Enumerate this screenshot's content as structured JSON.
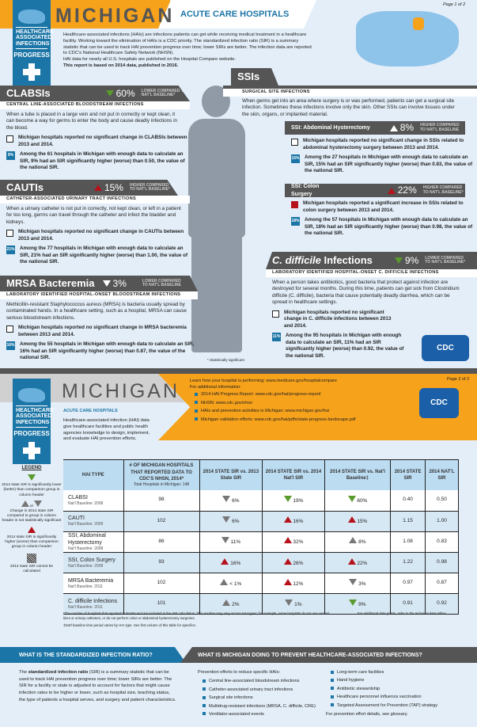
{
  "colors": {
    "orange": "#f7a21b",
    "blue": "#1b75a6",
    "dark": "#555555",
    "red": "#b5121b",
    "green": "#5a9a2e",
    "background": "#e3eef8"
  },
  "badge": {
    "lines": [
      "HEALTHCARE",
      "ASSOCIATED",
      "INFECTIONS"
    ],
    "progress": "PROGRESS"
  },
  "page1": {
    "page_label": "Page 1 of 2",
    "state": "MICHIGAN",
    "subtitle": "ACUTE CARE HOSPITALS",
    "intro": "Healthcare-associated infections (HAIs) are infections patients can get while receiving medical treatment in a healthcare facility. Working toward the elimination of HAIs is a CDC priority. The standardized infection ratio (SIR) is a summary statistic that can be used to track HAI prevention progress over time; lower SIRs are better. The infection data are reported to CDC's National Healthcare Safety Network (NHSN).",
    "intro2": "HAI data for nearly all U.S. hospitals are published on the Hospital Compare website.",
    "intro3": "This report is based on 2014 data, published in 2016.",
    "footnote": "* Statistically significant",
    "clabsi": {
      "name": "CLABSIs",
      "pct": "60%",
      "direction": "down",
      "cmp": "LOWER COMPARED TO NAT'L BASELINE*",
      "sub": "CENTRAL LINE-ASSOCIATED BLOODSTREAM INFECTIONS",
      "desc": "When a tube is placed in a large vein and not put in correctly or kept clean, it can become a way for germs to enter the body and cause deadly infections in the blood.",
      "change": "Michigan hospitals reported no significant change in CLABSIs between 2013 and 2014.",
      "badge": "9%",
      "among": "Among the 61 hospitals in Michigan with enough data to calculate an SIR, 9% had an SIR significantly higher (worse) than 0.50, the value of the national SIR."
    },
    "cauti": {
      "name": "CAUTIs",
      "pct": "15%",
      "direction": "up",
      "cmp": "HIGHER COMPARED TO NAT'L BASELINE*",
      "sub": "CATHETER-ASSOCIATED URINARY TRACT INFECTIONS",
      "desc": "When a urinary catheter is not put in correctly, not kept clean, or left in a patient for too long, germs can travel through the catheter and infect the bladder and kidneys.",
      "change": "Michigan hospitals reported no significant change in CAUTIs between 2013 and 2014.",
      "badge": "21%",
      "among": "Among the 77 hospitals in Michigan with enough data to calculate an SIR, 21% had an SIR significantly higher (worse) than 1.00, the value of the national SIR."
    },
    "mrsa": {
      "name": "MRSA Bacteremia",
      "pct": "3%",
      "direction": "down",
      "cmp": "LOWER COMPARED TO NAT'L BASELINE",
      "sub": "LABORATORY IDENTIFIED HOSPITAL-ONSET BLOODSTREAM INFECTIONS",
      "desc": "Methicillin-resistant Staphylococcus aureus (MRSA) is bacteria usually spread by contaminated hands. In a healthcare setting, such as a hospital, MRSA can cause serious bloodstream infections.",
      "change": "Michigan hospitals reported no significant change in MRSA bacteremia between 2013 and 2014.",
      "badge": "16%",
      "among": "Among the 55 hospitals in Michigan with enough data to calculate an SIR, 16% had an SIR significantly higher (worse) than 0.87, the value of the national SIR."
    },
    "ssi": {
      "name": "SSIs",
      "sub": "SURGICAL SITE INFECTIONS",
      "desc": "When germs get into an area where surgery is or was performed, patients can get a surgical site infection. Sometimes these infections involve only the skin. Other SSIs can involve tissues under the skin, organs, or implanted material."
    },
    "ssi_abd": {
      "name": "SSI: Abdominal Hysterectomy",
      "pct": "8%",
      "direction": "up",
      "cmp": "HIGHER COMPARED TO NAT'L BASELINE",
      "change": "Michigan hospitals reported no significant change in SSIs related to abdominal hysterectomy surgery between 2013 and 2014.",
      "badge": "15%",
      "among": "Among the 27 hospitals in Michigan with enough data to calculate an SIR, 15% had an SIR significantly higher (worse) than 0.83, the value of the national SIR."
    },
    "ssi_colon": {
      "name": "SSI: Colon Surgery",
      "pct": "22%",
      "direction": "up",
      "cmp": "HIGHER COMPARED TO NAT'L BASELINE*",
      "change": "Michigan hospitals reported a significant increase in SSIs related to colon surgery between 2013 and 2014.",
      "badge": "18%",
      "among": "Among the 57 hospitals in Michigan with enough data to calculate an SIR, 18% had an SIR significantly higher (worse) than 0.98, the value of the national SIR."
    },
    "cdiff": {
      "name_italic": "C. difficile",
      "name_rest": " Infections",
      "pct": "9%",
      "direction": "down",
      "cmp": "LOWER COMPARED TO NAT'L BASELINE*",
      "sub": "LABORATORY IDENTIFIED HOSPITAL-ONSET C. DIFFICILE INFECTIONS",
      "desc": "When a person takes antibiotics, good bacteria that protect against infection are destroyed for several months. During this time, patients can get sick from Clostridium difficile (C. difficile), bacteria that cause potentially deadly diarrhea, which can be spread in healthcare settings.",
      "change": "Michigan hospitals reported no significant change in C. difficile infections between 2013 and 2014.",
      "badge": "11%",
      "among": "Among the 95 hospitals in Michigan with enough data to calculate an SIR, 11% had an SIR significantly higher (worse) than 0.92, the value of the national SIR."
    },
    "cdc_logo": "CDC"
  },
  "page2": {
    "page_label": "Page 2 of 2",
    "state": "MICHIGAN",
    "subtitle": "ACUTE CARE HOSPITALS",
    "intro": "Healthcare-associated infection (HAI) data give healthcare facilities and public health agencies knowledge to design, implement, and evaluate HAI prevention efforts.",
    "learn": "Learn how your hospital is performing: www.medicare.gov/hospitalcompare",
    "additional": "For additional information:",
    "links": [
      "2014 HAI Progress Report: www.cdc.gov/hai/progress-report/",
      "NHSN: www.cdc.gov/nhsn",
      "HAIs and prevention activities in Michigan: www.michigan.gov/hai",
      "Michigan validation efforts: www.cdc.gov/hai/pdfs/state-progress-landscape.pdf"
    ],
    "legend": {
      "title": "LEGEND",
      "green": "2014 state SIR is significantly lower (better) than comparison group in column header",
      "or": "or",
      "neutral": "Change in 2014 state SIR compared to group in column header is not statistically significant",
      "red": "2014 state SIR is significantly higher (worse) than comparison group in column header",
      "hatched": "2014 state SIR cannot be calculated"
    },
    "table": {
      "headers": [
        "HAI TYPE",
        "# OF MICHIGAN HOSPITALS THAT REPORTED DATA TO CDC'S NHSN, 2014*",
        "2014 STATE SIR vs. 2013 State SIR",
        "2014 STATE SIR vs. 2014 Nat'l SIR",
        "2014 STATE SIR vs. Nat'l Baseline‡",
        "2014 STATE SIR",
        "2014 NAT'L SIR"
      ],
      "header_note": "Total Hospitals in Michigan: 148",
      "rows": [
        {
          "type": "CLABSI",
          "baseline": "Nat'l Baseline: 2008",
          "hospitals": "98",
          "vs2013": {
            "val": "6%",
            "icon": "neutral-down"
          },
          "vsnat": {
            "val": "19%",
            "icon": "green-down"
          },
          "vsbase": {
            "val": "60%",
            "icon": "green-down"
          },
          "state_sir": "0.40",
          "nat_sir": "0.50"
        },
        {
          "type": "CAUTI",
          "baseline": "Nat'l Baseline: 2009",
          "hospitals": "102",
          "vs2013": {
            "val": "6%",
            "icon": "neutral-down"
          },
          "vsnat": {
            "val": "16%",
            "icon": "red-up"
          },
          "vsbase": {
            "val": "15%",
            "icon": "red-up"
          },
          "state_sir": "1.15",
          "nat_sir": "1.00"
        },
        {
          "type": "SSI, Abdominal Hysterectomy",
          "baseline": "Nat'l Baseline: 2008",
          "hospitals": "86",
          "vs2013": {
            "val": "11%",
            "icon": "neutral-down"
          },
          "vsnat": {
            "val": "32%",
            "icon": "red-up"
          },
          "vsbase": {
            "val": "8%",
            "icon": "neutral-up"
          },
          "state_sir": "1.08",
          "nat_sir": "0.83"
        },
        {
          "type": "SSI, Colon Surgery",
          "baseline": "Nat'l Baseline: 2008",
          "hospitals": "93",
          "vs2013": {
            "val": "16%",
            "icon": "red-up"
          },
          "vsnat": {
            "val": "26%",
            "icon": "red-up"
          },
          "vsbase": {
            "val": "22%",
            "icon": "red-up"
          },
          "state_sir": "1.22",
          "nat_sir": "0.98"
        },
        {
          "type": "MRSA Bacteremia",
          "baseline": "Nat'l Baseline: 2011",
          "hospitals": "102",
          "vs2013": {
            "val": "< 1%",
            "icon": "neutral-up"
          },
          "vsnat": {
            "val": "12%",
            "icon": "red-up"
          },
          "vsbase": {
            "val": "3%",
            "icon": "neutral-down"
          },
          "state_sir": "0.97",
          "nat_sir": "0.87"
        },
        {
          "type": "C. difficile Infections",
          "baseline": "Nat'l Baseline: 2011",
          "hospitals": "101",
          "vs2013": {
            "val": "2%",
            "icon": "neutral-up"
          },
          "vsnat": {
            "val": "1%",
            "icon": "neutral-down"
          },
          "vsbase": {
            "val": "9%",
            "icon": "green-down"
          },
          "state_sir": "0.91",
          "nat_sir": "0.92"
        }
      ]
    },
    "footnote1": "*The number of hospitals that reported to NHSN and are included in the SIR calculation. This number may vary across HAI types; for example, some hospitals do not use central lines or urinary catheters, or do not perform colon or abdominal hysterectomy surgeries.",
    "footnote2": "‡Nat'l baseline time period varies by HAI type. See first column of this table for specifics.",
    "footnote_right": "For additional data points, refer to the technical data tables.",
    "sir_heading": "WHAT IS THE STANDARDIZED INFECTION RATIO?",
    "sir_bold": "standardized infection ratio",
    "sir_pre": "The ",
    "sir_text": " (SIR) is a summary statistic that can be used to track HAI prevention progress over time; lower SIRs are better. The SIR for a facility or state is adjusted to account for factors that might cause infection rates to be higher or lower, such as hospital size, teaching status, the type of patients a hospital serves, and surgery and patient characteristics.",
    "prev_heading": "WHAT IS MICHIGAN DOING TO PREVENT HEALTHCARE-ASSOCIATED INFECTIONS?",
    "prev_intro": "Prevention efforts to reduce specific HAIs:",
    "prev_list1": [
      "Central line-associated bloodstream infections",
      "Catheter-associated urinary tract infections",
      "Surgical site infections",
      "Multidrug-resistant infections (MRSA, C. difficile, CRE)",
      "Ventilator-associated events"
    ],
    "prev_list2": [
      "Long-term care facilities",
      "Hand hygiene",
      "Antibiotic stewardship",
      "Healthcare personnel influenza vaccination",
      "Targeted Assessment for Prevention (TAP) strategy"
    ],
    "prev_note": "For prevention effort details, see glossary.",
    "cdc_logo": "CDC"
  }
}
